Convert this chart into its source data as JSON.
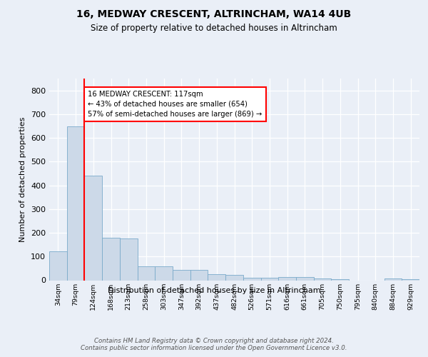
{
  "title1": "16, MEDWAY CRESCENT, ALTRINCHAM, WA14 4UB",
  "title2": "Size of property relative to detached houses in Altrincham",
  "xlabel": "Distribution of detached houses by size in Altrincham",
  "ylabel": "Number of detached properties",
  "categories": [
    "34sqm",
    "79sqm",
    "124sqm",
    "168sqm",
    "213sqm",
    "258sqm",
    "303sqm",
    "347sqm",
    "392sqm",
    "437sqm",
    "482sqm",
    "526sqm",
    "571sqm",
    "616sqm",
    "661sqm",
    "705sqm",
    "750sqm",
    "795sqm",
    "840sqm",
    "884sqm",
    "929sqm"
  ],
  "values": [
    122,
    648,
    440,
    178,
    175,
    60,
    58,
    44,
    43,
    25,
    24,
    11,
    10,
    15,
    14,
    7,
    6,
    0,
    0,
    7,
    6
  ],
  "bar_color": "#ccd9e8",
  "bar_edge_color": "#7aaaca",
  "red_line_index": 2,
  "annotation_text": "16 MEDWAY CRESCENT: 117sqm\n← 43% of detached houses are smaller (654)\n57% of semi-detached houses are larger (869) →",
  "footer": "Contains HM Land Registry data © Crown copyright and database right 2024.\nContains public sector information licensed under the Open Government Licence v3.0.",
  "ylim": [
    0,
    850
  ],
  "yticks": [
    0,
    100,
    200,
    300,
    400,
    500,
    600,
    700,
    800
  ],
  "background_color": "#eaeff7",
  "plot_background": "#eaeff7"
}
